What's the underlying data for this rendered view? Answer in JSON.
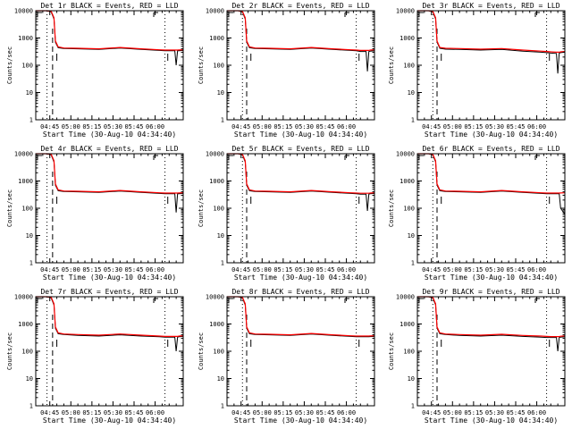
{
  "figure": {
    "colors": {
      "events": "#000000",
      "lld": "#ff0000",
      "background": "#ffffff",
      "axes": "#000000"
    }
  },
  "chart_data": [
    {
      "type": "line",
      "title": "Det 1r BLACK = Events, RED = LLD",
      "xlabel": "Start Time (30-Aug-10 04:34:40)",
      "ylabel": "Counts/sec",
      "yscale": "log",
      "ylim": [
        1,
        10000
      ],
      "x_tick_labels": [
        "04:45",
        "05:00",
        "05:15",
        "05:30",
        "05:45",
        "06:00"
      ],
      "y_tick_labels": [
        "1",
        "10",
        "100",
        "1000",
        "10000"
      ],
      "x_minutes": [
        0,
        8,
        11,
        13,
        14,
        16,
        20,
        30,
        45,
        60,
        75,
        88,
        92,
        95,
        99,
        100,
        101,
        102,
        105
      ],
      "series": [
        {
          "name": "Events",
          "color": "#000000",
          "values": [
            10000,
            10000,
            9000,
            5000,
            700,
            440,
            410,
            400,
            380,
            430,
            380,
            350,
            340,
            340,
            340,
            100,
            340,
            340,
            350
          ]
        },
        {
          "name": "LLD",
          "color": "#ff0000",
          "values": [
            11000,
            11000,
            9500,
            5500,
            780,
            470,
            430,
            420,
            400,
            450,
            400,
            370,
            360,
            360,
            360,
            360,
            360,
            365,
            370
          ]
        }
      ],
      "dotted_lines_min": [
        8,
        92
      ],
      "dashed_line_min": 12,
      "dash_marks_min": [
        15,
        94
      ],
      "corner_marks": true
    },
    {
      "type": "line",
      "title": "Det 2r BLACK = Events, RED = LLD",
      "xlabel": "Start Time (30-Aug-10 04:34:40)",
      "ylabel": "Counts/sec",
      "yscale": "log",
      "ylim": [
        1,
        10000
      ],
      "x_tick_labels": [
        "04:45",
        "05:00",
        "05:15",
        "05:30",
        "05:45",
        "06:00"
      ],
      "y_tick_labels": [
        "1",
        "10",
        "100",
        "1000",
        "10000"
      ],
      "x_minutes": [
        0,
        8,
        11,
        13,
        14,
        16,
        20,
        30,
        45,
        60,
        75,
        88,
        92,
        95,
        99,
        100,
        101,
        102,
        105
      ],
      "series": [
        {
          "name": "Events",
          "color": "#000000",
          "values": [
            10000,
            10000,
            9000,
            5000,
            700,
            440,
            410,
            400,
            380,
            430,
            380,
            350,
            340,
            320,
            320,
            60,
            320,
            330,
            340
          ]
        },
        {
          "name": "LLD",
          "color": "#ff0000",
          "values": [
            11000,
            11000,
            9500,
            5500,
            780,
            470,
            430,
            420,
            400,
            450,
            400,
            370,
            360,
            350,
            350,
            350,
            350,
            360,
            370
          ]
        }
      ],
      "dotted_lines_min": [
        11,
        92
      ],
      "dashed_line_min": 14,
      "dash_marks_min": [
        17,
        94
      ],
      "corner_marks": true
    },
    {
      "type": "line",
      "title": "Det 3r BLACK = Events, RED = LLD",
      "xlabel": "Start Time (30-Aug-10 04:34:40)",
      "ylabel": "Counts/sec",
      "yscale": "log",
      "ylim": [
        1,
        10000
      ],
      "x_tick_labels": [
        "04:45",
        "05:00",
        "05:15",
        "05:30",
        "05:45",
        "06:00"
      ],
      "y_tick_labels": [
        "1",
        "10",
        "100",
        "1000",
        "10000"
      ],
      "x_minutes": [
        0,
        8,
        11,
        13,
        14,
        16,
        20,
        30,
        45,
        60,
        75,
        88,
        92,
        95,
        99,
        100,
        101,
        102,
        105
      ],
      "series": [
        {
          "name": "Events",
          "color": "#000000",
          "values": [
            10000,
            10000,
            9000,
            5000,
            700,
            420,
            390,
            380,
            360,
            380,
            330,
            300,
            290,
            280,
            270,
            50,
            280,
            290,
            300
          ]
        },
        {
          "name": "LLD",
          "color": "#ff0000",
          "values": [
            11000,
            11000,
            9500,
            5500,
            780,
            450,
            420,
            410,
            390,
            410,
            360,
            330,
            320,
            310,
            300,
            300,
            300,
            310,
            320
          ]
        }
      ],
      "dotted_lines_min": [
        11,
        92
      ],
      "dashed_line_min": 14,
      "dash_marks_min": [
        17,
        94
      ],
      "corner_marks": true
    },
    {
      "type": "line",
      "title": "Det 4r BLACK = Events, RED = LLD",
      "xlabel": "Start Time (30-Aug-10 04:34:40)",
      "ylabel": "Counts/sec",
      "yscale": "log",
      "ylim": [
        1,
        10000
      ],
      "x_tick_labels": [
        "04:45",
        "05:00",
        "05:15",
        "05:30",
        "05:45",
        "06:00"
      ],
      "y_tick_labels": [
        "1",
        "10",
        "100",
        "1000",
        "10000"
      ],
      "x_minutes": [
        0,
        8,
        11,
        13,
        14,
        16,
        20,
        30,
        45,
        60,
        75,
        88,
        92,
        95,
        99,
        100,
        101,
        102,
        105
      ],
      "series": [
        {
          "name": "Events",
          "color": "#000000",
          "values": [
            10000,
            10000,
            9000,
            5000,
            700,
            440,
            410,
            400,
            380,
            430,
            380,
            350,
            340,
            340,
            340,
            70,
            340,
            340,
            350
          ]
        },
        {
          "name": "LLD",
          "color": "#ff0000",
          "values": [
            11000,
            11000,
            9500,
            5500,
            780,
            470,
            430,
            420,
            400,
            450,
            400,
            370,
            360,
            360,
            360,
            360,
            360,
            365,
            370
          ]
        }
      ],
      "dotted_lines_min": [
        8,
        92
      ],
      "dashed_line_min": 12,
      "dash_marks_min": [
        15,
        94
      ],
      "corner_marks": true
    },
    {
      "type": "line",
      "title": "Det 5r BLACK = Events, RED = LLD",
      "xlabel": "Start Time (30-Aug-10 04:34:40)",
      "ylabel": "Counts/sec",
      "yscale": "log",
      "ylim": [
        1,
        10000
      ],
      "x_tick_labels": [
        "04:45",
        "05:00",
        "05:15",
        "05:30",
        "05:45",
        "06:00"
      ],
      "y_tick_labels": [
        "1",
        "10",
        "100",
        "1000",
        "10000"
      ],
      "x_minutes": [
        0,
        8,
        11,
        13,
        14,
        16,
        20,
        30,
        45,
        60,
        75,
        88,
        92,
        95,
        99,
        100,
        101,
        102,
        105
      ],
      "series": [
        {
          "name": "Events",
          "color": "#000000",
          "values": [
            10000,
            10000,
            9000,
            5000,
            700,
            440,
            410,
            400,
            380,
            430,
            380,
            350,
            340,
            330,
            330,
            80,
            330,
            340,
            350
          ]
        },
        {
          "name": "LLD",
          "color": "#ff0000",
          "values": [
            11000,
            11000,
            9500,
            5500,
            780,
            470,
            430,
            420,
            400,
            450,
            400,
            370,
            360,
            355,
            355,
            355,
            355,
            360,
            370
          ]
        }
      ],
      "dotted_lines_min": [
        11,
        92
      ],
      "dashed_line_min": 14,
      "dash_marks_min": [
        17,
        94
      ],
      "corner_marks": true
    },
    {
      "type": "line",
      "title": "Det 6r BLACK = Events, RED = LLD",
      "xlabel": "Start Time (30-Aug-10 04:34:40)",
      "ylabel": "Counts/sec",
      "yscale": "log",
      "ylim": [
        1,
        10000
      ],
      "x_tick_labels": [
        "04:45",
        "05:00",
        "05:15",
        "05:30",
        "05:45",
        "06:00"
      ],
      "y_tick_labels": [
        "1",
        "10",
        "100",
        "1000",
        "10000"
      ],
      "x_minutes": [
        0,
        8,
        11,
        13,
        14,
        16,
        20,
        30,
        45,
        60,
        75,
        88,
        92,
        95,
        99,
        100,
        101,
        102,
        105
      ],
      "series": [
        {
          "name": "Events",
          "color": "#000000",
          "values": [
            10000,
            10000,
            9000,
            5000,
            700,
            440,
            410,
            400,
            380,
            430,
            380,
            350,
            340,
            340,
            340,
            340,
            340,
            100,
            60
          ]
        },
        {
          "name": "LLD",
          "color": "#ff0000",
          "values": [
            11000,
            11000,
            9500,
            5500,
            780,
            470,
            430,
            420,
            400,
            450,
            400,
            370,
            360,
            360,
            360,
            360,
            360,
            365,
            370
          ]
        }
      ],
      "dotted_lines_min": [
        11,
        92
      ],
      "dashed_line_min": 14,
      "dash_marks_min": [
        17,
        94
      ],
      "corner_marks": true
    },
    {
      "type": "line",
      "title": "Det 7r BLACK = Events, RED = LLD",
      "xlabel": "Start Time (30-Aug-10 04:34:40)",
      "ylabel": "Counts/sec",
      "yscale": "log",
      "ylim": [
        1,
        10000
      ],
      "x_tick_labels": [
        "04:45",
        "05:00",
        "05:15",
        "05:30",
        "05:45",
        "06:00"
      ],
      "y_tick_labels": [
        "1",
        "10",
        "100",
        "1000",
        "10000"
      ],
      "x_minutes": [
        0,
        8,
        11,
        13,
        14,
        16,
        20,
        30,
        45,
        60,
        75,
        88,
        92,
        95,
        99,
        100,
        101,
        102,
        105
      ],
      "series": [
        {
          "name": "Events",
          "color": "#000000",
          "values": [
            10000,
            10000,
            9000,
            5000,
            700,
            440,
            410,
            380,
            360,
            400,
            360,
            340,
            330,
            330,
            330,
            100,
            330,
            340,
            350
          ]
        },
        {
          "name": "LLD",
          "color": "#ff0000",
          "values": [
            11000,
            11000,
            9500,
            5500,
            780,
            470,
            430,
            410,
            390,
            430,
            390,
            360,
            350,
            350,
            350,
            350,
            350,
            360,
            370
          ]
        }
      ],
      "dotted_lines_min": [
        8,
        92
      ],
      "dashed_line_min": 12,
      "dash_marks_min": [
        15,
        94
      ],
      "corner_marks": true
    },
    {
      "type": "line",
      "title": "Det 8r BLACK = Events, RED = LLD",
      "xlabel": "Start Time (30-Aug-10 04:34:40)",
      "ylabel": "Counts/sec",
      "yscale": "log",
      "ylim": [
        1,
        10000
      ],
      "x_tick_labels": [
        "04:45",
        "05:00",
        "05:15",
        "05:30",
        "05:45",
        "06:00"
      ],
      "y_tick_labels": [
        "1",
        "10",
        "100",
        "1000",
        "10000"
      ],
      "x_minutes": [
        0,
        8,
        11,
        13,
        14,
        16,
        20,
        30,
        45,
        60,
        75,
        88,
        92,
        95,
        99,
        100,
        101,
        102,
        105
      ],
      "series": [
        {
          "name": "Events",
          "color": "#000000",
          "values": [
            10000,
            10000,
            9000,
            5000,
            700,
            440,
            410,
            400,
            380,
            430,
            380,
            350,
            340,
            340,
            340,
            340,
            340,
            345,
            350
          ]
        },
        {
          "name": "LLD",
          "color": "#ff0000",
          "values": [
            11000,
            11000,
            9500,
            5500,
            780,
            470,
            430,
            420,
            400,
            450,
            400,
            370,
            360,
            360,
            360,
            360,
            360,
            365,
            370
          ]
        }
      ],
      "dotted_lines_min": [
        11,
        92
      ],
      "dashed_line_min": 14,
      "dash_marks_min": [
        17,
        94
      ],
      "corner_marks": true
    },
    {
      "type": "line",
      "title": "Det 9r BLACK = Events, RED = LLD",
      "xlabel": "Start Time (30-Aug-10 04:34:40)",
      "ylabel": "Counts/sec",
      "yscale": "log",
      "ylim": [
        1,
        10000
      ],
      "x_tick_labels": [
        "04:45",
        "05:00",
        "05:15",
        "05:30",
        "05:45",
        "06:00"
      ],
      "y_tick_labels": [
        "1",
        "10",
        "100",
        "1000",
        "10000"
      ],
      "x_minutes": [
        0,
        8,
        11,
        13,
        14,
        16,
        20,
        30,
        45,
        60,
        75,
        88,
        92,
        95,
        99,
        100,
        101,
        102,
        105
      ],
      "series": [
        {
          "name": "Events",
          "color": "#000000",
          "values": [
            10000,
            10000,
            9000,
            5000,
            700,
            440,
            410,
            380,
            360,
            390,
            350,
            330,
            320,
            320,
            320,
            100,
            320,
            330,
            340
          ]
        },
        {
          "name": "LLD",
          "color": "#ff0000",
          "values": [
            11000,
            11000,
            9500,
            5500,
            780,
            470,
            430,
            410,
            390,
            420,
            380,
            360,
            350,
            345,
            345,
            345,
            345,
            355,
            365
          ]
        }
      ],
      "dotted_lines_min": [
        11,
        92
      ],
      "dashed_line_min": 14,
      "dash_marks_min": [
        17,
        94
      ],
      "corner_marks": true
    }
  ]
}
